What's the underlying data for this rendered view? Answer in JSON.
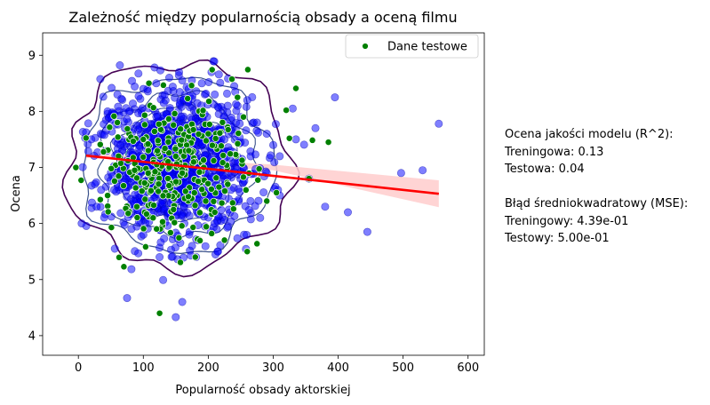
{
  "chart_data": {
    "type": "scatter",
    "title": "Zależność między popularnością obsady a oceną filmu",
    "xlabel": "Popularność obsady aktorskiej",
    "ylabel": "Ocena",
    "xlim": [
      -55,
      625
    ],
    "ylim": [
      3.65,
      9.4
    ],
    "x_ticks": [
      "0",
      "100",
      "200",
      "300",
      "400",
      "500",
      "600"
    ],
    "y_ticks": [
      "4",
      "5",
      "6",
      "7",
      "8",
      "9"
    ],
    "grid": false,
    "legend": {
      "placement": "top-right",
      "entries": [
        {
          "label": "Dane testowe",
          "color": "#008000"
        }
      ]
    },
    "colors": {
      "train_points": "#0000ff",
      "test_points": "#008000",
      "regression_line": "#ff0000",
      "confidence_band": "#ffcccc",
      "density_outer": "#440154",
      "density_mid": "#3b528b",
      "density_inner": "#5ec962"
    },
    "regression": {
      "x": [
        12,
        555
      ],
      "y": [
        7.21,
        6.53
      ],
      "ci_upper_end": 6.77,
      "ci_lower_end": 6.29
    },
    "train_sample": {
      "x": [
        75,
        28,
        120,
        140,
        155,
        170,
        190,
        210,
        230,
        250,
        270,
        290,
        310,
        335,
        355,
        380,
        395,
        415,
        445,
        497,
        530,
        555,
        160,
        150,
        100,
        60,
        45,
        35,
        20,
        5,
        70,
        175,
        125,
        290,
        310,
        260,
        240,
        205,
        215,
        185,
        330,
        365,
        300,
        280,
        255,
        95,
        110,
        85,
        135,
        145,
        165,
        180,
        195,
        225,
        235,
        245,
        265,
        275,
        55,
        65
      ],
      "y": [
        4.67,
        6.3,
        8.5,
        8.6,
        8.7,
        8.4,
        8.5,
        8.3,
        8.1,
        7.9,
        7.8,
        7.6,
        7.2,
        7.5,
        6.8,
        6.3,
        8.25,
        6.2,
        5.85,
        6.9,
        6.95,
        7.78,
        4.6,
        4.33,
        8.4,
        8.3,
        8.0,
        6.6,
        7.5,
        6.0,
        7.0,
        5.6,
        5.4,
        6.9,
        6.5,
        8.2,
        8.45,
        8.7,
        5.5,
        5.7,
        8.05,
        7.7,
        7.4,
        6.1,
        5.8,
        7.2,
        6.8,
        6.4,
        7.6,
        7.1,
        6.7,
        7.3,
        6.9,
        7.5,
        6.6,
        7.1,
        6.4,
        7.8,
        6.6,
        7.4
      ]
    },
    "test_sample": {
      "x": [
        125,
        70,
        100,
        150,
        160,
        200,
        230,
        320,
        325,
        335,
        355,
        385,
        275,
        245,
        305,
        180,
        210,
        140,
        90,
        60,
        45,
        115,
        260,
        290,
        170
      ],
      "y": [
        4.4,
        5.23,
        7.5,
        7.2,
        6.9,
        7.6,
        6.7,
        8.02,
        7.52,
        8.41,
        6.8,
        7.45,
        5.64,
        8.25,
        6.55,
        5.4,
        6.2,
        7.0,
        6.3,
        7.8,
        6.5,
        6.1,
        5.5,
        6.4,
        7.3
      ]
    }
  },
  "side_panel": {
    "r2_heading": "Ocena jakości modelu (R^2):",
    "r2_train": "Treningowa: 0.13",
    "r2_test": "Testowa: 0.04",
    "mse_heading": "Błąd średniokwadratowy (MSE):",
    "mse_train": "Treningowy: 4.39e-01",
    "mse_test": "Testowy: 5.00e-01"
  }
}
